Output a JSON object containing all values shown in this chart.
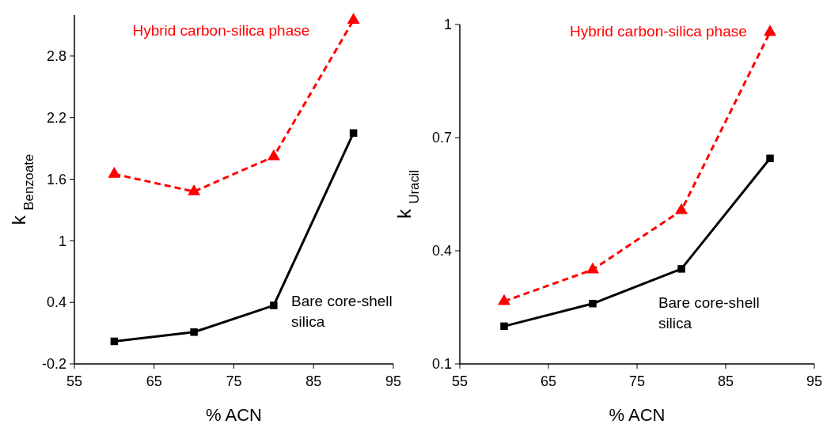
{
  "chart_data": [
    {
      "type": "line",
      "xlabel": "% ACN",
      "ylabel": "k $_{Benzoate}$",
      "x": [
        60,
        70,
        80,
        90
      ],
      "xlim": [
        55,
        95
      ],
      "xticks": [
        55,
        65,
        75,
        85,
        95
      ],
      "ylim": [
        -0.2,
        3.2
      ],
      "yticks": [
        -0.2,
        0.4,
        1,
        1.6,
        2.2,
        2.8
      ],
      "grid": false,
      "series": [
        {
          "name": "Hybrid carbon-silica phase",
          "color": "#ff0000",
          "values": [
            1.65,
            1.48,
            1.82,
            3.15
          ],
          "marker": "triangle",
          "line_style": "dashed"
        },
        {
          "name": "Bare core-shell silica",
          "color": "#000000",
          "values": [
            0.02,
            0.11,
            0.37,
            2.05
          ],
          "marker": "square",
          "line_style": "solid"
        }
      ]
    },
    {
      "type": "line",
      "xlabel": "% ACN",
      "ylabel": "k $_{Uracil}$",
      "x": [
        60,
        70,
        80,
        90
      ],
      "xlim": [
        55,
        95
      ],
      "xticks": [
        55,
        65,
        75,
        85,
        95
      ],
      "ylim": [
        0.1,
        1
      ],
      "yticks": [
        0.1,
        0.4,
        0.7,
        1
      ],
      "grid": false,
      "series": [
        {
          "name": "Hybrid carbon-silica phase",
          "color": "#ff0000",
          "values": [
            0.266,
            0.35,
            0.507,
            0.98
          ],
          "marker": "triangle",
          "line_style": "dashed"
        },
        {
          "name": "Bare core-shell silica",
          "color": "#000000",
          "values": [
            0.2,
            0.26,
            0.352,
            0.645
          ],
          "marker": "square",
          "line_style": "solid"
        }
      ]
    }
  ]
}
